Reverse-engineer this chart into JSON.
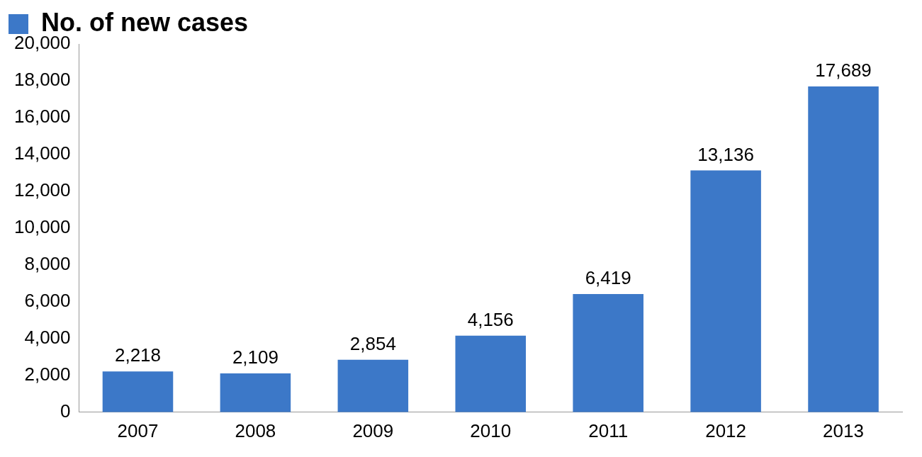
{
  "chart_data": {
    "type": "bar",
    "categories": [
      "2007",
      "2008",
      "2009",
      "2010",
      "2011",
      "2012",
      "2013"
    ],
    "series": [
      {
        "name": "No. of new cases",
        "color": "#3c78c8",
        "values": [
          2218,
          2109,
          2854,
          4156,
          6419,
          13136,
          17689
        ],
        "value_labels": [
          "2,218",
          "2,109",
          "2,854",
          "4,156",
          "6,419",
          "13,136",
          "17,689"
        ]
      }
    ],
    "ylim": [
      0,
      20000
    ],
    "yticks": [
      0,
      {
        "value": 2000,
        "label": "2,000"
      },
      {
        "value": 4000,
        "label": "4,000"
      },
      {
        "value": 6000,
        "label": "6,000"
      },
      {
        "value": 8000,
        "label": "8,000"
      },
      {
        "value": 10000,
        "label": "10,000"
      },
      {
        "value": 12000,
        "label": "12,000"
      },
      {
        "value": 14000,
        "label": "14,000"
      },
      {
        "value": 16000,
        "label": "16,000"
      },
      {
        "value": 18000,
        "label": "18,000"
      },
      {
        "value": 20000,
        "label": "20,000"
      }
    ],
    "grid": false,
    "legend": "top left"
  }
}
